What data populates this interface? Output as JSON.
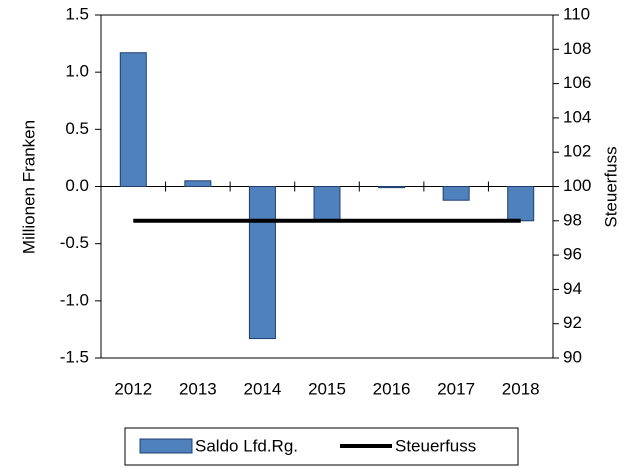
{
  "chart_data": {
    "type": "bar",
    "categories": [
      "2012",
      "2013",
      "2014",
      "2015",
      "2016",
      "2017",
      "2018"
    ],
    "series": [
      {
        "name": "Saldo Lfd.Rg.",
        "type": "bar",
        "color": "#4f81bd",
        "values": [
          1.17,
          0.05,
          -1.33,
          -0.3,
          -0.01,
          -0.12,
          -0.3
        ]
      },
      {
        "name": "Steuerfuss",
        "type": "line",
        "axis": "y2",
        "color": "#000000",
        "values": [
          98,
          98,
          98,
          98,
          98,
          98,
          98
        ]
      }
    ],
    "ylabel": "Millionen Franken",
    "y2label": "Steuerfuss",
    "ylim": [
      -1.5,
      1.5
    ],
    "yticks": [
      -1.5,
      {
        "value": -1.0,
        "label": "-1.0"
      },
      -0.5,
      {
        "value": 0.0,
        "label": "0.0"
      },
      0.5,
      {
        "value": 1.0,
        "label": "1.0"
      },
      1.5
    ],
    "y2lim": [
      90,
      110
    ],
    "y2ticks": [
      90,
      92,
      94,
      96,
      98,
      100,
      102,
      104,
      106,
      108,
      110
    ],
    "legend": "bottom"
  }
}
